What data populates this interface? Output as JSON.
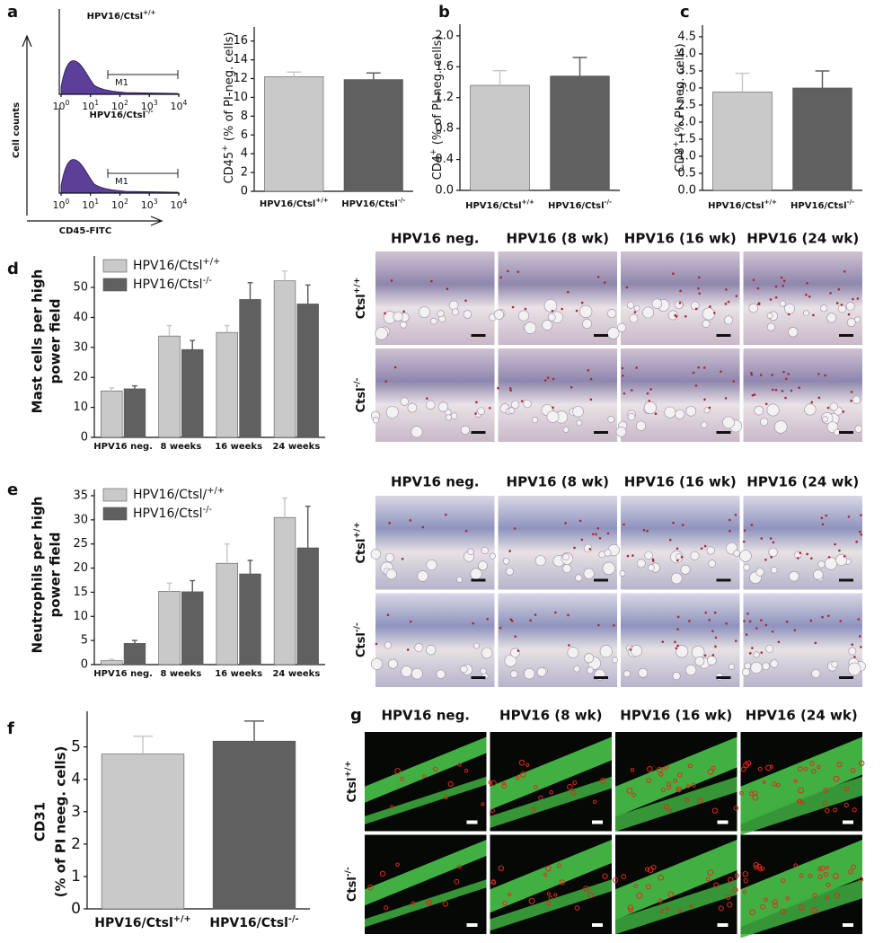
{
  "panels": [
    "a",
    "b",
    "c",
    "d",
    "e",
    "f",
    "g"
  ],
  "flow": {
    "samples": [
      {
        "text": "HPV16/Ctsl",
        "sup": "+/+"
      },
      {
        "text": "HPV16/Ctsl",
        "sup": "-/-"
      }
    ],
    "gate": "M1",
    "ylabel": "Cell counts",
    "xlabel": "CD45-FITC",
    "xticks": [
      {
        "text": "10",
        "sup": "0"
      },
      {
        "text": "10",
        "sup": "1"
      },
      {
        "text": "10",
        "sup": "2"
      },
      {
        "text": "10",
        "sup": "3"
      },
      {
        "text": "10",
        "sup": "4"
      }
    ]
  },
  "chart_data": [
    {
      "type": "bar",
      "ylabel": {
        "text": "CD45",
        "sup": "+",
        "rest": " (% of PI-neg. cells)"
      },
      "categories": [
        {
          "text": "HPV16/Ctsl",
          "sup": "+/+"
        },
        {
          "text": "HPV16/Ctsl",
          "sup": "-/-"
        }
      ],
      "values": [
        12.2,
        11.9
      ],
      "errors": [
        0.5,
        0.7
      ],
      "colors": [
        "#c9c9c9",
        "#606060"
      ],
      "ylim": [
        0,
        17.5
      ],
      "yticks": [
        0,
        2,
        4,
        6,
        8,
        10,
        12,
        14,
        16
      ]
    },
    {
      "type": "bar",
      "ylabel": {
        "text": "CD4",
        "sup": "+",
        "rest": " (% of PI-neg. cells)"
      },
      "categories": [
        {
          "text": "HPV16/Ctsl",
          "sup": "+/+"
        },
        {
          "text": "HPV16/Ctsl",
          "sup": "-/-"
        }
      ],
      "values": [
        1.36,
        1.48
      ],
      "errors": [
        0.19,
        0.24
      ],
      "colors": [
        "#c9c9c9",
        "#606060"
      ],
      "ylim": [
        0,
        2.15
      ],
      "yticks": [
        {
          "value": 0,
          "label": "0.0"
        },
        0.4,
        0.8,
        1.2,
        1.6,
        {
          "value": 2,
          "label": "2.0"
        }
      ]
    },
    {
      "type": "bar",
      "ylabel": {
        "text": "CD8",
        "sup": "+",
        "rest": " (% PI neg. cells)"
      },
      "categories": [
        {
          "text": "HPV16/Ctsl",
          "sup": "+/+"
        },
        {
          "text": "HPV16/Ctsl",
          "sup": "-/-"
        }
      ],
      "values": [
        2.88,
        3.0
      ],
      "errors": [
        0.55,
        0.5
      ],
      "colors": [
        "#c9c9c9",
        "#606060"
      ],
      "ylim": [
        0,
        4.84
      ],
      "yticks": [
        {
          "value": 0,
          "label": "0.0"
        },
        0.5,
        {
          "value": 1,
          "label": "1.0"
        },
        1.5,
        {
          "value": 2,
          "label": "2.0"
        },
        2.5,
        {
          "value": 3,
          "label": "3.0"
        },
        3.5,
        {
          "value": 4,
          "label": "4.0"
        },
        4.5
      ]
    },
    {
      "type": "bar",
      "ylabel": [
        "Mast cells per high",
        "power field"
      ],
      "categories": [
        "HPV16 neg.",
        "8 weeks",
        "16 weeks",
        "24 weeks"
      ],
      "series": [
        {
          "name": {
            "text": "HPV16/Ctsl",
            "sup": "+/+"
          },
          "color": "#c9c9c9",
          "values": [
            15.5,
            33.8,
            35,
            52.2
          ],
          "errors": [
            1,
            3.5,
            2.3,
            3.3
          ]
        },
        {
          "name": {
            "text": "HPV16/Ctsl",
            "sup": "-/-"
          },
          "color": "#606060",
          "values": [
            16.2,
            29.3,
            46,
            44.5
          ],
          "errors": [
            1,
            3,
            5.6,
            6.3
          ]
        }
      ],
      "ylim": [
        0,
        60.5
      ],
      "yticks": [
        0,
        10,
        20,
        30,
        40,
        50
      ]
    },
    {
      "type": "bar",
      "ylabel": [
        "Neutrophils per high",
        "power field"
      ],
      "categories": [
        "HPV16 neg.",
        "8 weeks",
        "16 weeks",
        "24 weeks"
      ],
      "series": [
        {
          "name": {
            "text": "HPV16/Ctsl/",
            "sup": "+/+"
          },
          "color": "#c9c9c9",
          "values": [
            0.8,
            15.2,
            21,
            30.5
          ],
          "errors": [
            0.3,
            1.7,
            4,
            4
          ]
        },
        {
          "name": {
            "text": "HPV16/Ctsl",
            "sup": "-/-"
          },
          "color": "#606060",
          "values": [
            4.4,
            15.1,
            18.8,
            24.2
          ],
          "errors": [
            0.6,
            2.3,
            2.8,
            8.6
          ]
        }
      ],
      "ylim": [
        0,
        36.3
      ],
      "yticks": [
        0,
        5,
        10,
        15,
        20,
        25,
        30,
        35
      ]
    },
    {
      "type": "bar",
      "ylabel": [
        "CD31",
        "(% of PI neeg. cells)"
      ],
      "categories": [
        {
          "text": "HPV16/Ctsl",
          "sup": "+/+"
        },
        {
          "text": "HPV16/Ctsl",
          "sup": "-/-"
        }
      ],
      "values": [
        4.78,
        5.18
      ],
      "errors": [
        0.55,
        0.62
      ],
      "colors": [
        "#c9c9c9",
        "#606060"
      ],
      "ylim": [
        0,
        6.1
      ],
      "yticks": [
        0,
        1,
        2,
        3,
        4,
        5
      ]
    }
  ],
  "micrographs": [
    {
      "columns": [
        "HPV16 neg.",
        "HPV16 (8 wk)",
        "HPV16 (16 wk)",
        "HPV16 (24 wk)"
      ],
      "rows": [
        {
          "text": "Ctsl",
          "sup": "+/+"
        },
        {
          "text": "Ctsl",
          "sup": "-/-"
        }
      ]
    },
    {
      "columns": [
        "HPV16 neg.",
        "HPV16 (8 wk)",
        "HPV16 (16 wk)",
        "HPV16 (24 wk)"
      ],
      "rows": [
        {
          "text": "Ctsl",
          "sup": "+/+"
        },
        {
          "text": "Ctsl",
          "sup": "-/-"
        }
      ]
    },
    {
      "columns": [
        "HPV16 neg.",
        "HPV16 (8 wk)",
        "HPV16 (16 wk)",
        "HPV16 (24 wk)"
      ],
      "rows": [
        {
          "text": "Ctsl",
          "sup": "+/+"
        },
        {
          "text": "Ctsl",
          "sup": "-/-"
        }
      ]
    }
  ]
}
